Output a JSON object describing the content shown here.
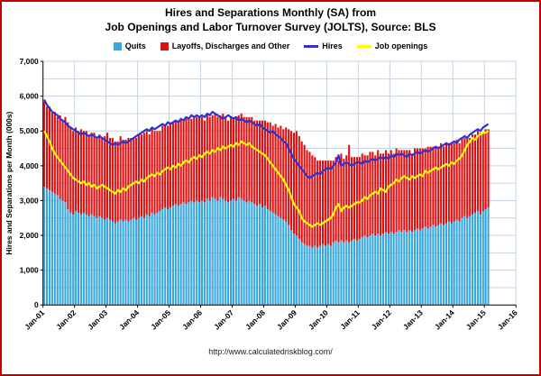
{
  "page": {
    "title_line1": "Hires and Separations Monthly (SA) from",
    "title_line2": "Job Openings and Labor Turnover Survey (JOLTS), Source: BLS",
    "footer_url": "http://www.calculatedriskblog.com/"
  },
  "colors": {
    "frame_border": "#c00000",
    "grid": "#c4d2e3",
    "axis": "#000000"
  },
  "legend": [
    {
      "label": "Quits",
      "type": "bar",
      "color": "#3aa8dc"
    },
    {
      "label": "Layoffs, Discharges and Other",
      "type": "bar",
      "color": "#dd1111"
    },
    {
      "label": "Hires",
      "type": "line",
      "color": "#3030cf"
    },
    {
      "label": "Job openings",
      "type": "line",
      "color": "#ffff00"
    }
  ],
  "chart_data": {
    "type": "bar",
    "subtype": "stacked bars with line overlays",
    "title": "Hires and Separations Monthly (SA) from Job Openings and Labor Turnover Survey (JOLTS), Source: BLS",
    "xlabel": "",
    "ylabel": "Hires and Separations per Month (000s)",
    "ylim": [
      0,
      7000
    ],
    "y_tick_step": 1000,
    "grid_step": 500,
    "grid": true,
    "legend_position": "top",
    "x_start": "Jan-2001",
    "x_months_total_axis": 180,
    "x_tick_labels": [
      "Jan-01",
      "Jan-02",
      "Jan-03",
      "Jan-04",
      "Jan-05",
      "Jan-06",
      "Jan-07",
      "Jan-08",
      "Jan-09",
      "Jan-10",
      "Jan-11",
      "Jan-12",
      "Jan-13",
      "Jan-14",
      "Jan-15",
      "Jan-16"
    ],
    "stacked_bar_series": [
      {
        "name": "Quits",
        "color": "#3aa8dc",
        "values": [
          3400,
          3350,
          3300,
          3250,
          3200,
          3150,
          3050,
          3000,
          2950,
          2750,
          2650,
          2600,
          2700,
          2650,
          2600,
          2650,
          2600,
          2550,
          2600,
          2550,
          2500,
          2550,
          2500,
          2450,
          2500,
          2450,
          2400,
          2350,
          2400,
          2450,
          2400,
          2450,
          2400,
          2450,
          2500,
          2450,
          2500,
          2550,
          2500,
          2600,
          2550,
          2650,
          2600,
          2650,
          2700,
          2750,
          2800,
          2750,
          2800,
          2850,
          2900,
          2850,
          2900,
          2950,
          2900,
          2950,
          3000,
          2950,
          3000,
          2950,
          3000,
          2950,
          3050,
          3000,
          3100,
          3050,
          3000,
          3100,
          3050,
          3000,
          2950,
          3000,
          3050,
          3000,
          3100,
          3050,
          3000,
          2950,
          3000,
          2950,
          2900,
          2850,
          2900,
          2800,
          2850,
          2750,
          2700,
          2650,
          2600,
          2550,
          2500,
          2450,
          2400,
          2300,
          2150,
          2050,
          2000,
          1900,
          1800,
          1750,
          1700,
          1700,
          1650,
          1700,
          1650,
          1700,
          1750,
          1700,
          1750,
          1700,
          1800,
          1850,
          1800,
          1850,
          1800,
          1850,
          1800,
          1850,
          1900,
          1850,
          1900,
          1950,
          2000,
          1950,
          2000,
          2050,
          2000,
          2050,
          2000,
          2050,
          2100,
          2050,
          2100,
          2050,
          2100,
          2150,
          2100,
          2150,
          2100,
          2150,
          2100,
          2150,
          2200,
          2150,
          2200,
          2250,
          2200,
          2250,
          2300,
          2250,
          2300,
          2350,
          2300,
          2350,
          2400,
          2350,
          2400,
          2450,
          2400,
          2500,
          2550,
          2500,
          2550,
          2600,
          2650,
          2700,
          2600,
          2700,
          2750,
          2800
        ]
      },
      {
        "name": "Layoffs, Discharges and Other",
        "color": "#dd1111",
        "values": [
          2450,
          2350,
          2400,
          2300,
          2350,
          2250,
          2400,
          2300,
          2450,
          2500,
          2450,
          2400,
          2400,
          2350,
          2450,
          2350,
          2400,
          2300,
          2350,
          2400,
          2300,
          2350,
          2300,
          2400,
          2450,
          2350,
          2400,
          2350,
          2300,
          2400,
          2350,
          2300,
          2400,
          2350,
          2300,
          2350,
          2400,
          2350,
          2450,
          2400,
          2350,
          2450,
          2400,
          2350,
          2300,
          2400,
          2350,
          2400,
          2450,
          2400,
          2350,
          2450,
          2400,
          2350,
          2450,
          2400,
          2350,
          2450,
          2400,
          2450,
          2400,
          2350,
          2450,
          2400,
          2350,
          2450,
          2400,
          2350,
          2450,
          2400,
          2350,
          2400,
          2350,
          2400,
          2350,
          2450,
          2400,
          2450,
          2400,
          2450,
          2400,
          2450,
          2400,
          2500,
          2450,
          2500,
          2550,
          2500,
          2600,
          2550,
          2650,
          2600,
          2700,
          2750,
          2850,
          2900,
          3000,
          2950,
          2900,
          2850,
          2750,
          2700,
          2650,
          2550,
          2500,
          2450,
          2400,
          2450,
          2400,
          2450,
          2350,
          2400,
          2350,
          2500,
          2400,
          2450,
          2800,
          2400,
          2350,
          2400,
          2350,
          2400,
          2300,
          2350,
          2400,
          2350,
          2300,
          2400,
          2350,
          2300,
          2350,
          2300,
          2350,
          2300,
          2400,
          2300,
          2350,
          2300,
          2350,
          2300,
          2250,
          2350,
          2300,
          2350,
          2300,
          2250,
          2350,
          2300,
          2250,
          2300,
          2250,
          2300,
          2250,
          2300,
          2250,
          2300,
          2250,
          2300,
          2250,
          2300,
          2250,
          2300,
          2250,
          2300,
          2250,
          2300,
          2350,
          2250,
          2300,
          2250
        ]
      }
    ],
    "line_series": [
      {
        "name": "Hires",
        "color": "#3030cf",
        "values": [
          5900,
          5750,
          5650,
          5550,
          5500,
          5450,
          5350,
          5300,
          5250,
          5150,
          5100,
          5050,
          5000,
          4950,
          4900,
          4950,
          4900,
          4850,
          4900,
          4850,
          4800,
          4850,
          4800,
          4750,
          4700,
          4650,
          4600,
          4650,
          4600,
          4650,
          4700,
          4650,
          4700,
          4750,
          4800,
          4850,
          4900,
          4950,
          5000,
          5050,
          5000,
          5100,
          5050,
          5100,
          5150,
          5200,
          5150,
          5250,
          5200,
          5250,
          5300,
          5250,
          5350,
          5300,
          5400,
          5350,
          5450,
          5400,
          5450,
          5400,
          5450,
          5400,
          5500,
          5450,
          5550,
          5500,
          5450,
          5400,
          5350,
          5400,
          5450,
          5400,
          5350,
          5400,
          5300,
          5350,
          5300,
          5250,
          5300,
          5250,
          5200,
          5150,
          5200,
          5100,
          5050,
          5000,
          4950,
          5000,
          4900,
          4850,
          4800,
          4700,
          4650,
          4500,
          4350,
          4200,
          4100,
          4000,
          3900,
          3800,
          3700,
          3650,
          3700,
          3750,
          3800,
          3750,
          3850,
          3900,
          3950,
          3900,
          4000,
          4100,
          4300,
          4000,
          4050,
          4100,
          4050,
          4000,
          4050,
          4100,
          4100,
          4050,
          4150,
          4100,
          4150,
          4200,
          4150,
          4200,
          4250,
          4200,
          4250,
          4200,
          4300,
          4250,
          4350,
          4300,
          4350,
          4300,
          4250,
          4350,
          4300,
          4350,
          4400,
          4350,
          4400,
          4450,
          4400,
          4450,
          4500,
          4550,
          4500,
          4550,
          4600,
          4650,
          4600,
          4650,
          4700,
          4650,
          4750,
          4800,
          4850,
          4800,
          4900,
          4950,
          5000,
          5050,
          5000,
          5100,
          5150,
          5200
        ]
      },
      {
        "name": "Job openings",
        "color": "#ffff00",
        "values": [
          5000,
          4850,
          4700,
          4500,
          4350,
          4250,
          4150,
          4050,
          3950,
          3850,
          3750,
          3650,
          3600,
          3550,
          3500,
          3550,
          3450,
          3500,
          3400,
          3450,
          3350,
          3400,
          3450,
          3400,
          3350,
          3300,
          3250,
          3200,
          3300,
          3250,
          3350,
          3300,
          3400,
          3450,
          3500,
          3550,
          3500,
          3600,
          3550,
          3650,
          3700,
          3750,
          3700,
          3800,
          3750,
          3850,
          3900,
          3950,
          3900,
          4000,
          3950,
          4050,
          4000,
          4100,
          4150,
          4100,
          4200,
          4250,
          4200,
          4300,
          4250,
          4350,
          4400,
          4350,
          4450,
          4400,
          4500,
          4450,
          4550,
          4500,
          4550,
          4600,
          4550,
          4650,
          4600,
          4700,
          4650,
          4600,
          4650,
          4550,
          4500,
          4450,
          4400,
          4350,
          4300,
          4200,
          4100,
          4000,
          3900,
          3800,
          3700,
          3600,
          3450,
          3300,
          3100,
          2900,
          2800,
          2700,
          2500,
          2400,
          2350,
          2300,
          2250,
          2300,
          2350,
          2300,
          2350,
          2400,
          2450,
          2500,
          2600,
          2800,
          2900,
          2700,
          2800,
          2850,
          2800,
          2850,
          2900,
          2950,
          2950,
          3000,
          3100,
          3050,
          3150,
          3200,
          3250,
          3200,
          3350,
          3300,
          3250,
          3400,
          3450,
          3500,
          3600,
          3550,
          3650,
          3700,
          3650,
          3600,
          3700,
          3650,
          3700,
          3750,
          3700,
          3850,
          3800,
          3850,
          3900,
          3950,
          3900,
          3950,
          4000,
          4050,
          4000,
          4100,
          4050,
          4150,
          4200,
          4300,
          4450,
          4600,
          4700,
          4800,
          4750,
          4850,
          4900,
          4950,
          4950,
          5000
        ]
      }
    ]
  }
}
